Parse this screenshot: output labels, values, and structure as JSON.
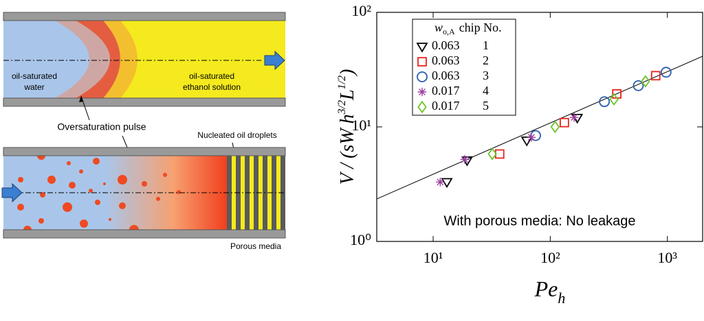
{
  "diagram": {
    "top_left_label": [
      "oil-saturated",
      "water"
    ],
    "top_right_label": [
      "oil-saturated",
      "ethanol solution"
    ],
    "pulse_label": "Oversaturation pulse",
    "droplets_label": "Nucleated oil droplets",
    "porous_label": "Porous media"
  },
  "chart_data": {
    "type": "scatter",
    "log_x": true,
    "log_y": true,
    "x_label": {
      "text": "Pe",
      "subscript": "h"
    },
    "y_label": {
      "text": "V / (sW h",
      "sup1": "3/2",
      "mid": "L",
      "sup2": "1/2",
      "end": ")"
    },
    "annotation": "With porous media: No leakage",
    "legend_header": {
      "symbol": "w",
      "subscript": "o,A",
      "label": "chip No."
    },
    "xlim": [
      3.3,
      2000
    ],
    "ylim": [
      1,
      100
    ],
    "xticks": [
      {
        "value": 10,
        "label": "10¹"
      },
      {
        "value": 100,
        "label": "10²"
      },
      {
        "value": 1000,
        "label": "10³"
      }
    ],
    "yticks": [
      {
        "value": 1,
        "label": "10⁰"
      },
      {
        "value": 10,
        "label": "10¹"
      },
      {
        "value": 100,
        "label": "10²"
      }
    ],
    "fit_line": {
      "color": "#000000",
      "x": [
        3.3,
        2000
      ],
      "y": [
        2.35,
        41.4
      ]
    },
    "series": [
      {
        "name": "0.063",
        "chip": "1",
        "marker": "triangle-down",
        "color": "#000000",
        "x": [
          13.1,
          19.5,
          63,
          170
        ],
        "values": [
          3.3,
          5.1,
          7.6,
          12
        ]
      },
      {
        "name": "0.063",
        "chip": "2",
        "marker": "square",
        "color": "#e8241c",
        "x": [
          37,
          132,
          370,
          795
        ],
        "values": [
          5.8,
          10.9,
          19.4,
          28
        ]
      },
      {
        "name": "0.063",
        "chip": "3",
        "marker": "circle",
        "color": "#2a5cb0",
        "x": [
          75,
          290,
          565,
          975
        ],
        "values": [
          8.4,
          16.6,
          22.9,
          30
        ]
      },
      {
        "name": "0.017",
        "chip": "4",
        "marker": "asterisk",
        "color": "#9b3fa0",
        "x": [
          11.5,
          18.6,
          69,
          160
        ],
        "values": [
          3.3,
          5.2,
          8.1,
          12.1
        ]
      },
      {
        "name": "0.017",
        "chip": "5",
        "marker": "diamond",
        "color": "#6cc42a",
        "x": [
          32,
          110,
          350,
          650
        ],
        "values": [
          5.8,
          10,
          17.4,
          25
        ]
      }
    ]
  }
}
